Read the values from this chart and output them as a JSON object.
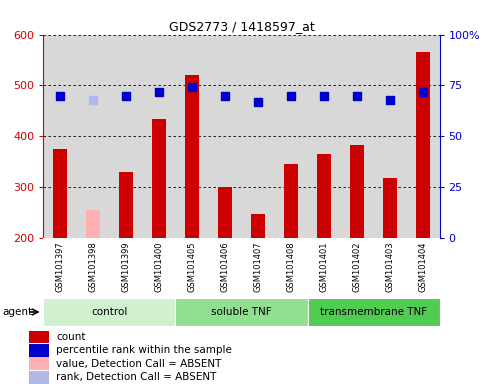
{
  "title": "GDS2773 / 1418597_at",
  "samples": [
    "GSM101397",
    "GSM101398",
    "GSM101399",
    "GSM101400",
    "GSM101405",
    "GSM101406",
    "GSM101407",
    "GSM101408",
    "GSM101401",
    "GSM101402",
    "GSM101403",
    "GSM101404"
  ],
  "counts": [
    375,
    null,
    330,
    435,
    520,
    300,
    248,
    345,
    365,
    382,
    318,
    565
  ],
  "counts_absent": [
    null,
    255,
    null,
    null,
    null,
    null,
    null,
    null,
    null,
    null,
    null,
    null
  ],
  "percentile_ranks": [
    70,
    null,
    70,
    72,
    74,
    70,
    67,
    70,
    70,
    70,
    68,
    72
  ],
  "percentile_ranks_absent": [
    null,
    68,
    null,
    null,
    null,
    null,
    null,
    null,
    null,
    null,
    null,
    null
  ],
  "ylim_left": [
    200,
    600
  ],
  "ylim_right": [
    0,
    100
  ],
  "yticks_left": [
    200,
    300,
    400,
    500,
    600
  ],
  "yticks_right": [
    0,
    25,
    50,
    75,
    100
  ],
  "ytick_labels_right": [
    "0",
    "25",
    "50",
    "75",
    "100%"
  ],
  "groups": [
    {
      "label": "control",
      "start": 0,
      "end": 4,
      "color": "#d0f0d0"
    },
    {
      "label": "soluble TNF",
      "start": 4,
      "end": 8,
      "color": "#90e090"
    },
    {
      "label": "transmembrane TNF",
      "start": 8,
      "end": 12,
      "color": "#50cc50"
    }
  ],
  "bar_color": "#cc0000",
  "bar_color_absent": "#ffb0b0",
  "dot_color": "#0000cc",
  "dot_color_absent": "#b0b8e8",
  "bar_width": 0.45,
  "dot_size": 30,
  "background_color": "#ffffff",
  "plot_bg_color": "#d8d8d8",
  "grid_color": "#000000",
  "left_axis_color": "#cc0000",
  "right_axis_color": "#0000cc",
  "legend_items": [
    {
      "label": "count",
      "color": "#cc0000"
    },
    {
      "label": "percentile rank within the sample",
      "color": "#0000cc"
    },
    {
      "label": "value, Detection Call = ABSENT",
      "color": "#ffb0b0"
    },
    {
      "label": "rank, Detection Call = ABSENT",
      "color": "#b0b8e8"
    }
  ]
}
